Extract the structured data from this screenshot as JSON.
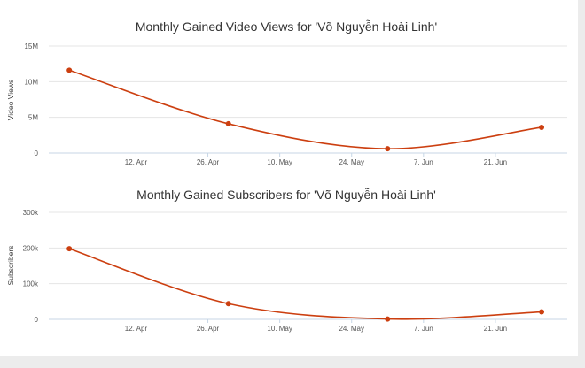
{
  "chart_data": [
    {
      "type": "line",
      "title": "Monthly Gained Video Views for 'Võ Nguyễn Hoài Linh'",
      "ylabel": "Video Views",
      "x_tick_labels": [
        "12. Apr",
        "26. Apr",
        "10. May",
        "24. May",
        "7. Jun",
        "21. Jun"
      ],
      "y_tick_labels": [
        "0",
        "5M",
        "10M",
        "15M"
      ],
      "ylim": [
        0,
        15000000
      ],
      "series": [
        {
          "x": [
            "2015-03-30",
            "2015-04-30",
            "2015-05-31",
            "2015-06-30"
          ],
          "values": [
            11600000,
            4100000,
            600000,
            3600000
          ]
        }
      ],
      "color": "#cc3f10",
      "grid": true
    },
    {
      "type": "line",
      "title": "Monthly Gained Subscribers for 'Võ Nguyễn Hoài Linh'",
      "ylabel": "Subscribers",
      "x_tick_labels": [
        "12. Apr",
        "26. Apr",
        "10. May",
        "24. May",
        "7. Jun",
        "21. Jun"
      ],
      "y_tick_labels": [
        "0",
        "100k",
        "200k",
        "300k"
      ],
      "ylim": [
        0,
        300000
      ],
      "series": [
        {
          "x": [
            "2015-03-30",
            "2015-04-30",
            "2015-05-31",
            "2015-06-30"
          ],
          "values": [
            198000,
            44000,
            1000,
            21000
          ]
        }
      ],
      "color": "#cc3f10",
      "grid": true
    }
  ]
}
